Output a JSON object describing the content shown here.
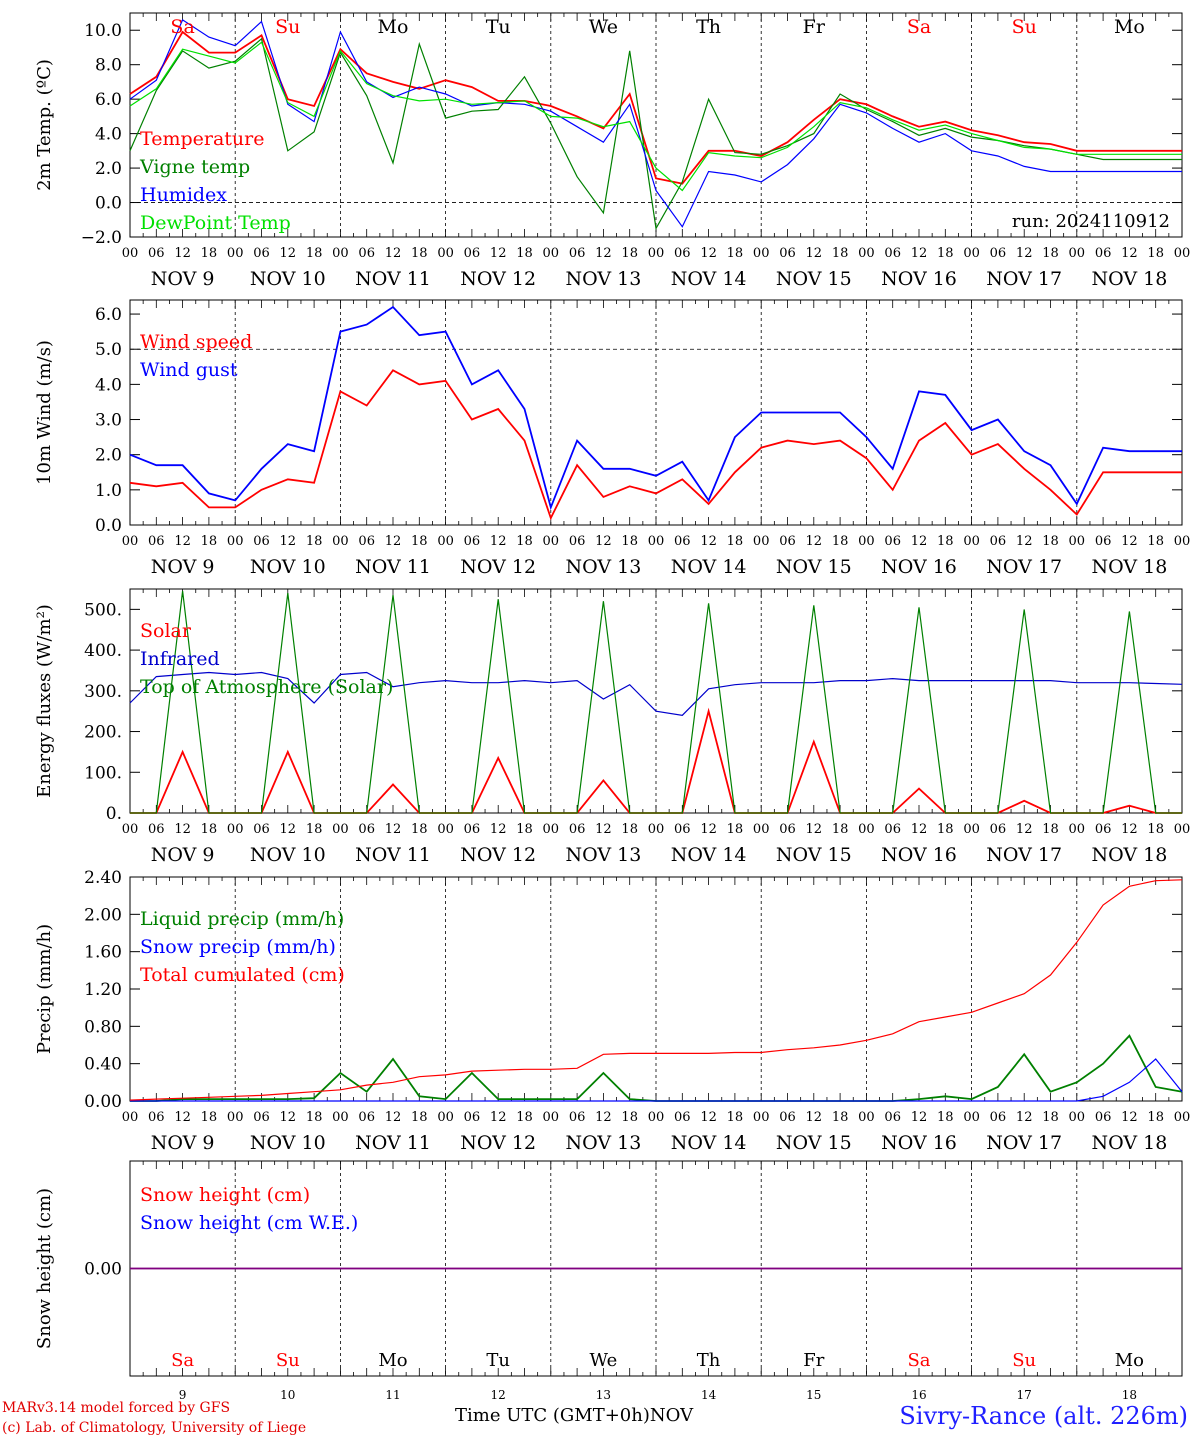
{
  "chart_data": [
    {
      "type": "line",
      "ylabel": "2m Temp. (ºC)",
      "ylim": [
        -2,
        11
      ],
      "yticks": [
        "10.0",
        "8.0",
        "6.0",
        "4.0",
        "2.0",
        "0.0",
        "−2.0"
      ],
      "ytick_values": [
        10,
        8,
        6,
        4,
        2,
        0,
        -2
      ],
      "dashed_ref_y": 0,
      "annotation": "run: 2024110912",
      "x": [
        0,
        6,
        12,
        18,
        24,
        30,
        36,
        42,
        48,
        54,
        60,
        66,
        72,
        78,
        84,
        90,
        96,
        102,
        108,
        114,
        120,
        126,
        132,
        138,
        144,
        150,
        156,
        162,
        168,
        174,
        180,
        186,
        192,
        198,
        204,
        210,
        216,
        222,
        228,
        234,
        240
      ],
      "series": [
        {
          "name": "Temperature",
          "color": "#ff0000",
          "values": [
            6.3,
            7.3,
            9.9,
            8.7,
            8.7,
            9.7,
            6.0,
            5.6,
            8.9,
            7.5,
            7.0,
            6.6,
            7.1,
            6.7,
            5.9,
            5.9,
            5.6,
            5.0,
            4.3,
            6.3,
            1.4,
            1.1,
            3.0,
            3.0,
            2.7,
            3.5,
            4.8,
            6.0,
            5.7,
            5.0,
            4.4,
            4.7,
            4.2,
            3.9,
            3.5,
            3.4,
            3.0,
            3.0,
            3.0,
            3.0,
            3.0
          ]
        },
        {
          "name": "Vigne temp",
          "color": "#008000",
          "values": [
            3.0,
            6.5,
            8.8,
            7.8,
            8.2,
            9.5,
            3.0,
            4.1,
            8.7,
            6.2,
            2.3,
            9.2,
            4.9,
            5.3,
            5.4,
            7.3,
            4.6,
            1.5,
            -0.6,
            8.8,
            -1.5,
            1.2,
            6.0,
            2.9,
            2.8,
            3.3,
            4.0,
            6.3,
            5.4,
            4.7,
            3.9,
            4.3,
            3.8,
            3.6,
            3.3,
            3.1,
            2.8,
            2.5,
            2.5,
            2.5,
            2.5
          ]
        },
        {
          "name": "Humidex",
          "color": "#0000ff",
          "values": [
            6.0,
            7.1,
            10.6,
            9.6,
            9.1,
            10.5,
            5.7,
            4.7,
            9.9,
            7.0,
            6.1,
            6.7,
            6.3,
            5.6,
            5.8,
            5.7,
            5.3,
            4.4,
            3.5,
            5.7,
            0.7,
            -1.4,
            1.8,
            1.6,
            1.2,
            2.2,
            3.7,
            5.7,
            5.2,
            4.3,
            3.5,
            4.0,
            3.0,
            2.7,
            2.1,
            1.8,
            1.8,
            1.8,
            1.8,
            1.8,
            1.8
          ]
        },
        {
          "name": "DewPoint Temp",
          "color": "#00e000",
          "values": [
            5.6,
            6.6,
            8.9,
            8.5,
            8.1,
            9.3,
            5.8,
            5.0,
            8.8,
            6.9,
            6.2,
            5.9,
            6.0,
            5.7,
            5.8,
            5.9,
            5.0,
            4.9,
            4.4,
            4.7,
            2.0,
            0.7,
            2.9,
            2.7,
            2.6,
            3.2,
            4.4,
            5.8,
            5.5,
            4.8,
            4.2,
            4.5,
            4.0,
            3.6,
            3.2,
            3.1,
            2.8,
            2.8,
            2.8,
            2.8,
            2.8
          ]
        }
      ]
    },
    {
      "type": "line",
      "ylabel": "10m Wind (m/s)",
      "ylim": [
        0,
        6.4
      ],
      "yticks": [
        "6.0",
        "5.0",
        "4.0",
        "3.0",
        "2.0",
        "1.0",
        "0.0"
      ],
      "ytick_values": [
        6,
        5,
        4,
        3,
        2,
        1,
        0
      ],
      "dashed_ref_y": 5,
      "x": [
        0,
        6,
        12,
        18,
        24,
        30,
        36,
        42,
        48,
        54,
        60,
        66,
        72,
        78,
        84,
        90,
        96,
        102,
        108,
        114,
        120,
        126,
        132,
        138,
        144,
        150,
        156,
        162,
        168,
        174,
        180,
        186,
        192,
        198,
        204,
        210,
        216,
        222,
        228,
        234,
        240
      ],
      "series": [
        {
          "name": "Wind speed",
          "color": "#ff0000",
          "values": [
            1.2,
            1.1,
            1.2,
            0.5,
            0.5,
            1.0,
            1.3,
            1.2,
            3.8,
            3.4,
            4.4,
            4.0,
            4.1,
            3.0,
            3.3,
            2.4,
            0.2,
            1.7,
            0.8,
            1.1,
            0.9,
            1.3,
            0.6,
            1.5,
            2.2,
            2.4,
            2.3,
            2.4,
            1.9,
            1.0,
            2.4,
            2.9,
            2.0,
            2.3,
            1.6,
            1.0,
            0.3,
            1.5,
            1.5,
            1.5,
            1.5
          ]
        },
        {
          "name": "Wind gust",
          "color": "#0000ff",
          "values": [
            2.0,
            1.7,
            1.7,
            0.9,
            0.7,
            1.6,
            2.3,
            2.1,
            5.5,
            5.7,
            6.2,
            5.4,
            5.5,
            4.0,
            4.4,
            3.3,
            0.5,
            2.4,
            1.6,
            1.6,
            1.4,
            1.8,
            0.7,
            2.5,
            3.2,
            3.2,
            3.2,
            3.2,
            2.5,
            1.6,
            3.8,
            3.7,
            2.7,
            3.0,
            2.1,
            1.7,
            0.6,
            2.2,
            2.1,
            2.1,
            2.1
          ]
        }
      ]
    },
    {
      "type": "line",
      "ylabel": "Energy fluxes (W/m²)",
      "ylim": [
        0,
        550
      ],
      "yticks": [
        "500.",
        "400.",
        "300.",
        "200.",
        "100.",
        "0."
      ],
      "ytick_values": [
        500,
        400,
        300,
        200,
        100,
        0
      ],
      "x": [
        0,
        6,
        12,
        18,
        24,
        30,
        36,
        42,
        48,
        54,
        60,
        66,
        72,
        78,
        84,
        90,
        96,
        102,
        108,
        114,
        120,
        126,
        132,
        138,
        144,
        150,
        156,
        162,
        168,
        174,
        180,
        186,
        192,
        198,
        204,
        210,
        216,
        222,
        228,
        234,
        240
      ],
      "series": [
        {
          "name": "Solar",
          "color": "#ff0000",
          "values": [
            0,
            0,
            150,
            0,
            0,
            0,
            150,
            0,
            0,
            0,
            70,
            0,
            0,
            0,
            135,
            0,
            0,
            0,
            80,
            0,
            0,
            0,
            250,
            0,
            0,
            0,
            175,
            0,
            0,
            0,
            60,
            0,
            0,
            0,
            30,
            0,
            0,
            0,
            18,
            0,
            0
          ]
        },
        {
          "name": "Infrared",
          "color": "#0000cc",
          "values": [
            270,
            335,
            340,
            345,
            340,
            345,
            330,
            270,
            340,
            345,
            310,
            320,
            325,
            320,
            320,
            325,
            320,
            325,
            280,
            315,
            250,
            240,
            305,
            315,
            320,
            320,
            320,
            325,
            325,
            330,
            325,
            325,
            325,
            325,
            325,
            325,
            320,
            320,
            320,
            318,
            316
          ]
        },
        {
          "name": "Top of Atmosphere (Solar)",
          "color": "#008000",
          "values": [
            0,
            0,
            545,
            0,
            0,
            0,
            540,
            0,
            0,
            0,
            535,
            0,
            0,
            0,
            525,
            0,
            0,
            0,
            520,
            0,
            0,
            0,
            515,
            0,
            0,
            0,
            510,
            0,
            0,
            0,
            505,
            0,
            0,
            0,
            500,
            0,
            0,
            0,
            495,
            0,
            0
          ]
        }
      ]
    },
    {
      "type": "line",
      "ylabel": "Precip (mm/h)",
      "ylim": [
        0,
        2.4
      ],
      "yticks": [
        "2.40",
        "2.00",
        "1.60",
        "1.20",
        "0.80",
        "0.40",
        "0.00"
      ],
      "ytick_values": [
        2.4,
        2.0,
        1.6,
        1.2,
        0.8,
        0.4,
        0.0
      ],
      "x": [
        0,
        6,
        12,
        18,
        24,
        30,
        36,
        42,
        48,
        54,
        60,
        66,
        72,
        78,
        84,
        90,
        96,
        102,
        108,
        114,
        120,
        126,
        132,
        138,
        144,
        150,
        156,
        162,
        168,
        174,
        180,
        186,
        192,
        198,
        204,
        210,
        216,
        222,
        228,
        234,
        240
      ],
      "series": [
        {
          "name": "Liquid precip (mm/h)",
          "color": "#008000",
          "values": [
            0,
            0,
            0.02,
            0.02,
            0.02,
            0.02,
            0.02,
            0.03,
            0.3,
            0.1,
            0.45,
            0.05,
            0.02,
            0.3,
            0.02,
            0.02,
            0.02,
            0.02,
            0.3,
            0.02,
            0,
            0,
            0,
            0,
            0,
            0,
            0,
            0,
            0,
            0,
            0.02,
            0.05,
            0.02,
            0.15,
            0.5,
            0.1,
            0.2,
            0.4,
            0.7,
            0.15,
            0.1
          ]
        },
        {
          "name": "Snow precip (mm/h)",
          "color": "#0000ff",
          "values": [
            0,
            0,
            0,
            0,
            0,
            0,
            0,
            0,
            0,
            0,
            0,
            0,
            0,
            0,
            0,
            0,
            0,
            0,
            0,
            0,
            0,
            0,
            0,
            0,
            0,
            0,
            0,
            0,
            0,
            0,
            0,
            0,
            0,
            0,
            0,
            0,
            0,
            0.05,
            0.2,
            0.45,
            0.1
          ]
        },
        {
          "name": "Total cumulated (cm)",
          "color": "#ff0000",
          "values": [
            0.01,
            0.02,
            0.03,
            0.04,
            0.05,
            0.06,
            0.08,
            0.1,
            0.12,
            0.17,
            0.2,
            0.26,
            0.28,
            0.32,
            0.33,
            0.34,
            0.34,
            0.35,
            0.5,
            0.51,
            0.51,
            0.51,
            0.51,
            0.52,
            0.52,
            0.55,
            0.57,
            0.6,
            0.65,
            0.72,
            0.85,
            0.9,
            0.95,
            1.05,
            1.15,
            1.35,
            1.7,
            2.1,
            2.3,
            2.36,
            2.37
          ]
        }
      ]
    },
    {
      "type": "line",
      "ylabel": "Snow height (cm)",
      "ylim": [
        -1,
        1
      ],
      "yticks": [
        "0.00"
      ],
      "ytick_values": [
        0
      ],
      "x": [
        0,
        240
      ],
      "series": [
        {
          "name": "Snow height (cm)",
          "color": "#ff0000",
          "values": [
            0,
            0
          ]
        },
        {
          "name": "Snow height (cm W.E.)",
          "color": "#0000ff",
          "values": [
            0,
            0
          ]
        }
      ]
    }
  ],
  "hour_ticks": [
    "00",
    "06",
    "12",
    "18"
  ],
  "date_labels": [
    "NOV  9",
    "NOV 10",
    "NOV 11",
    "NOV 12",
    "NOV 13",
    "NOV 14",
    "NOV 15",
    "NOV 16",
    "NOV 17",
    "NOV 18"
  ],
  "weekdays": [
    "Sa",
    "Su",
    "Mo",
    "Tu",
    "We",
    "Th",
    "Fr",
    "Sa",
    "Su",
    "Mo"
  ],
  "weekend_flags": [
    true,
    true,
    false,
    false,
    false,
    false,
    false,
    true,
    true,
    false
  ],
  "day_numbers": [
    "9",
    "10",
    "11",
    "12",
    "13",
    "14",
    "15",
    "16",
    "17",
    "18"
  ],
  "colors": {
    "weekend": "#ff0000",
    "weekday": "#000000",
    "snow_line": "#800080"
  },
  "footer": {
    "model": "MARv3.14 model forced by GFS",
    "copyright": "(c) Lab. of Climatology, University of Liege",
    "axis_title": "Time UTC (GMT+0h)",
    "month": "NOV",
    "station": "Sivry-Rance (alt. 226m)"
  }
}
